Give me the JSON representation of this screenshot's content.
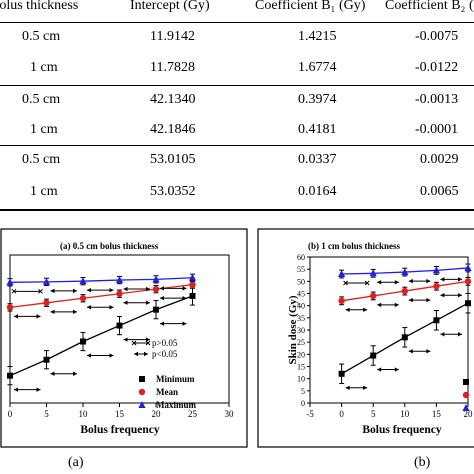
{
  "table": {
    "headers": [
      "Bolus thickness",
      "Intercept (Gy)",
      "Coefficient B₁ (Gy)",
      "Coefficient B₂ ("
    ],
    "rows": [
      [
        "0.5 cm",
        "11.9142",
        "1.4215",
        "-0.0075"
      ],
      [
        "1 cm",
        "11.7828",
        "1.6774",
        "-0.0122"
      ],
      [
        "0.5 cm",
        "42.1340",
        "0.3974",
        "-0.0013"
      ],
      [
        "1 cm",
        "42.1846",
        "0.4181",
        "-0.0001"
      ],
      [
        "0.5 cm",
        "53.0105",
        "0.0337",
        "0.0029"
      ],
      [
        "1 cm",
        "53.0352",
        "0.0164",
        "0.0065"
      ]
    ]
  },
  "captions": {
    "a": "(a)",
    "b": "(b)"
  },
  "chart_data": [
    {
      "type": "line",
      "title": "(a) 0.5 cm bolus thickness",
      "xlabel": "Bolus frequency",
      "ylabel": "",
      "xlim": [
        0,
        30
      ],
      "ylim": [
        0,
        65
      ],
      "x_ticks": [
        "0",
        "5",
        "10",
        "15",
        "20",
        "25",
        "30"
      ],
      "x": [
        0,
        5,
        10,
        15,
        20,
        25
      ],
      "series": [
        {
          "name": "Minimum",
          "color": "#000000",
          "marker": "square",
          "values": [
            12,
            19,
            27,
            34,
            41,
            47
          ]
        },
        {
          "name": "Mean",
          "color": "#e02020",
          "marker": "circle",
          "values": [
            42,
            44,
            46,
            48,
            50,
            52
          ]
        },
        {
          "name": "Maximum",
          "color": "#2020e0",
          "marker": "triangle",
          "values": [
            53,
            53.2,
            53.5,
            54,
            54.3,
            55
          ]
        }
      ],
      "legend_labels": [
        "Minimum",
        "Mean",
        "Maximum"
      ],
      "annotation_legend": [
        "p>0.05",
        "p<0.05"
      ],
      "legend": "bottom-right"
    },
    {
      "type": "line",
      "title": "(b) 1 cm bolus thickness",
      "xlabel": "Bolus frequency",
      "ylabel": "Skin dose (Gy)",
      "xlim": [
        -5,
        20
      ],
      "ylim": [
        0,
        60
      ],
      "x_ticks": [
        "-5",
        "0",
        "5",
        "10",
        "15",
        "20"
      ],
      "y_ticks": [
        "0",
        "5",
        "10",
        "15",
        "20",
        "25",
        "30",
        "35",
        "40",
        "45",
        "50",
        "55",
        "60"
      ],
      "x": [
        0,
        5,
        10,
        15,
        20
      ],
      "series": [
        {
          "name": "Minimum",
          "color": "#000000",
          "marker": "square",
          "values": [
            12,
            19.5,
            27,
            34,
            41
          ]
        },
        {
          "name": "Mean",
          "color": "#e02020",
          "marker": "circle",
          "values": [
            42,
            44,
            46,
            48,
            50
          ]
        },
        {
          "name": "Maximum",
          "color": "#2020e0",
          "marker": "triangle",
          "values": [
            53,
            53.3,
            53.8,
            54.5,
            55.5
          ]
        }
      ]
    }
  ]
}
